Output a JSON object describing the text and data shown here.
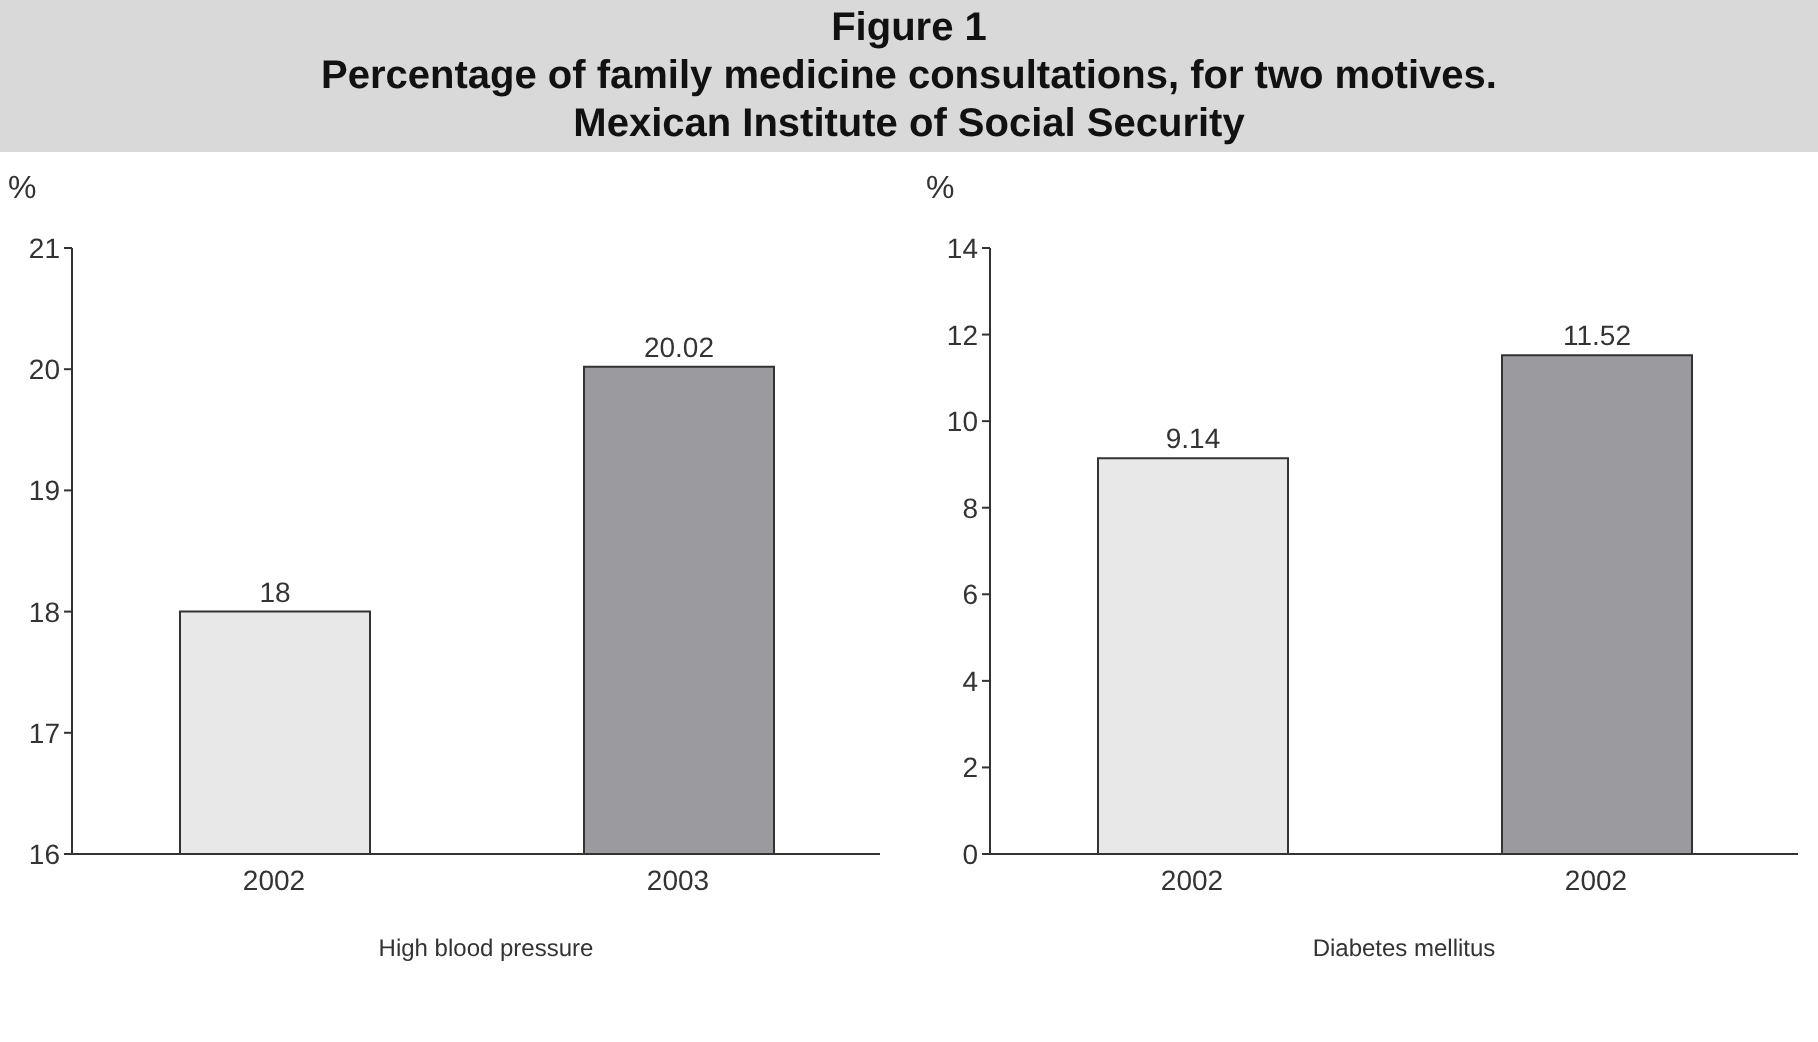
{
  "chart_data": [
    {
      "type": "bar",
      "title": "Figure 1\nPercentage of family medicine consultations, for two motives.\nMexican Institute of Social Security",
      "ylabel": "%",
      "xlabel": "High blood pressure",
      "categories": [
        "2002",
        "2003"
      ],
      "values": [
        18,
        20.02
      ],
      "colors": [
        "#e8e8e8",
        "#9b9b9f"
      ],
      "ylim": [
        16,
        21
      ],
      "yticks": [
        16,
        17,
        18,
        19,
        20,
        21
      ],
      "data_labels": true
    },
    {
      "type": "bar",
      "ylabel": "%",
      "xlabel": "Diabetes mellitus",
      "categories": [
        "2002",
        "2002"
      ],
      "values": [
        9.14,
        11.52
      ],
      "colors": [
        "#e8e8e8",
        "#9b9b9f"
      ],
      "ylim": [
        0,
        14
      ],
      "yticks": [
        0,
        2,
        4,
        6,
        8,
        10,
        12,
        14
      ],
      "data_labels": true
    }
  ]
}
